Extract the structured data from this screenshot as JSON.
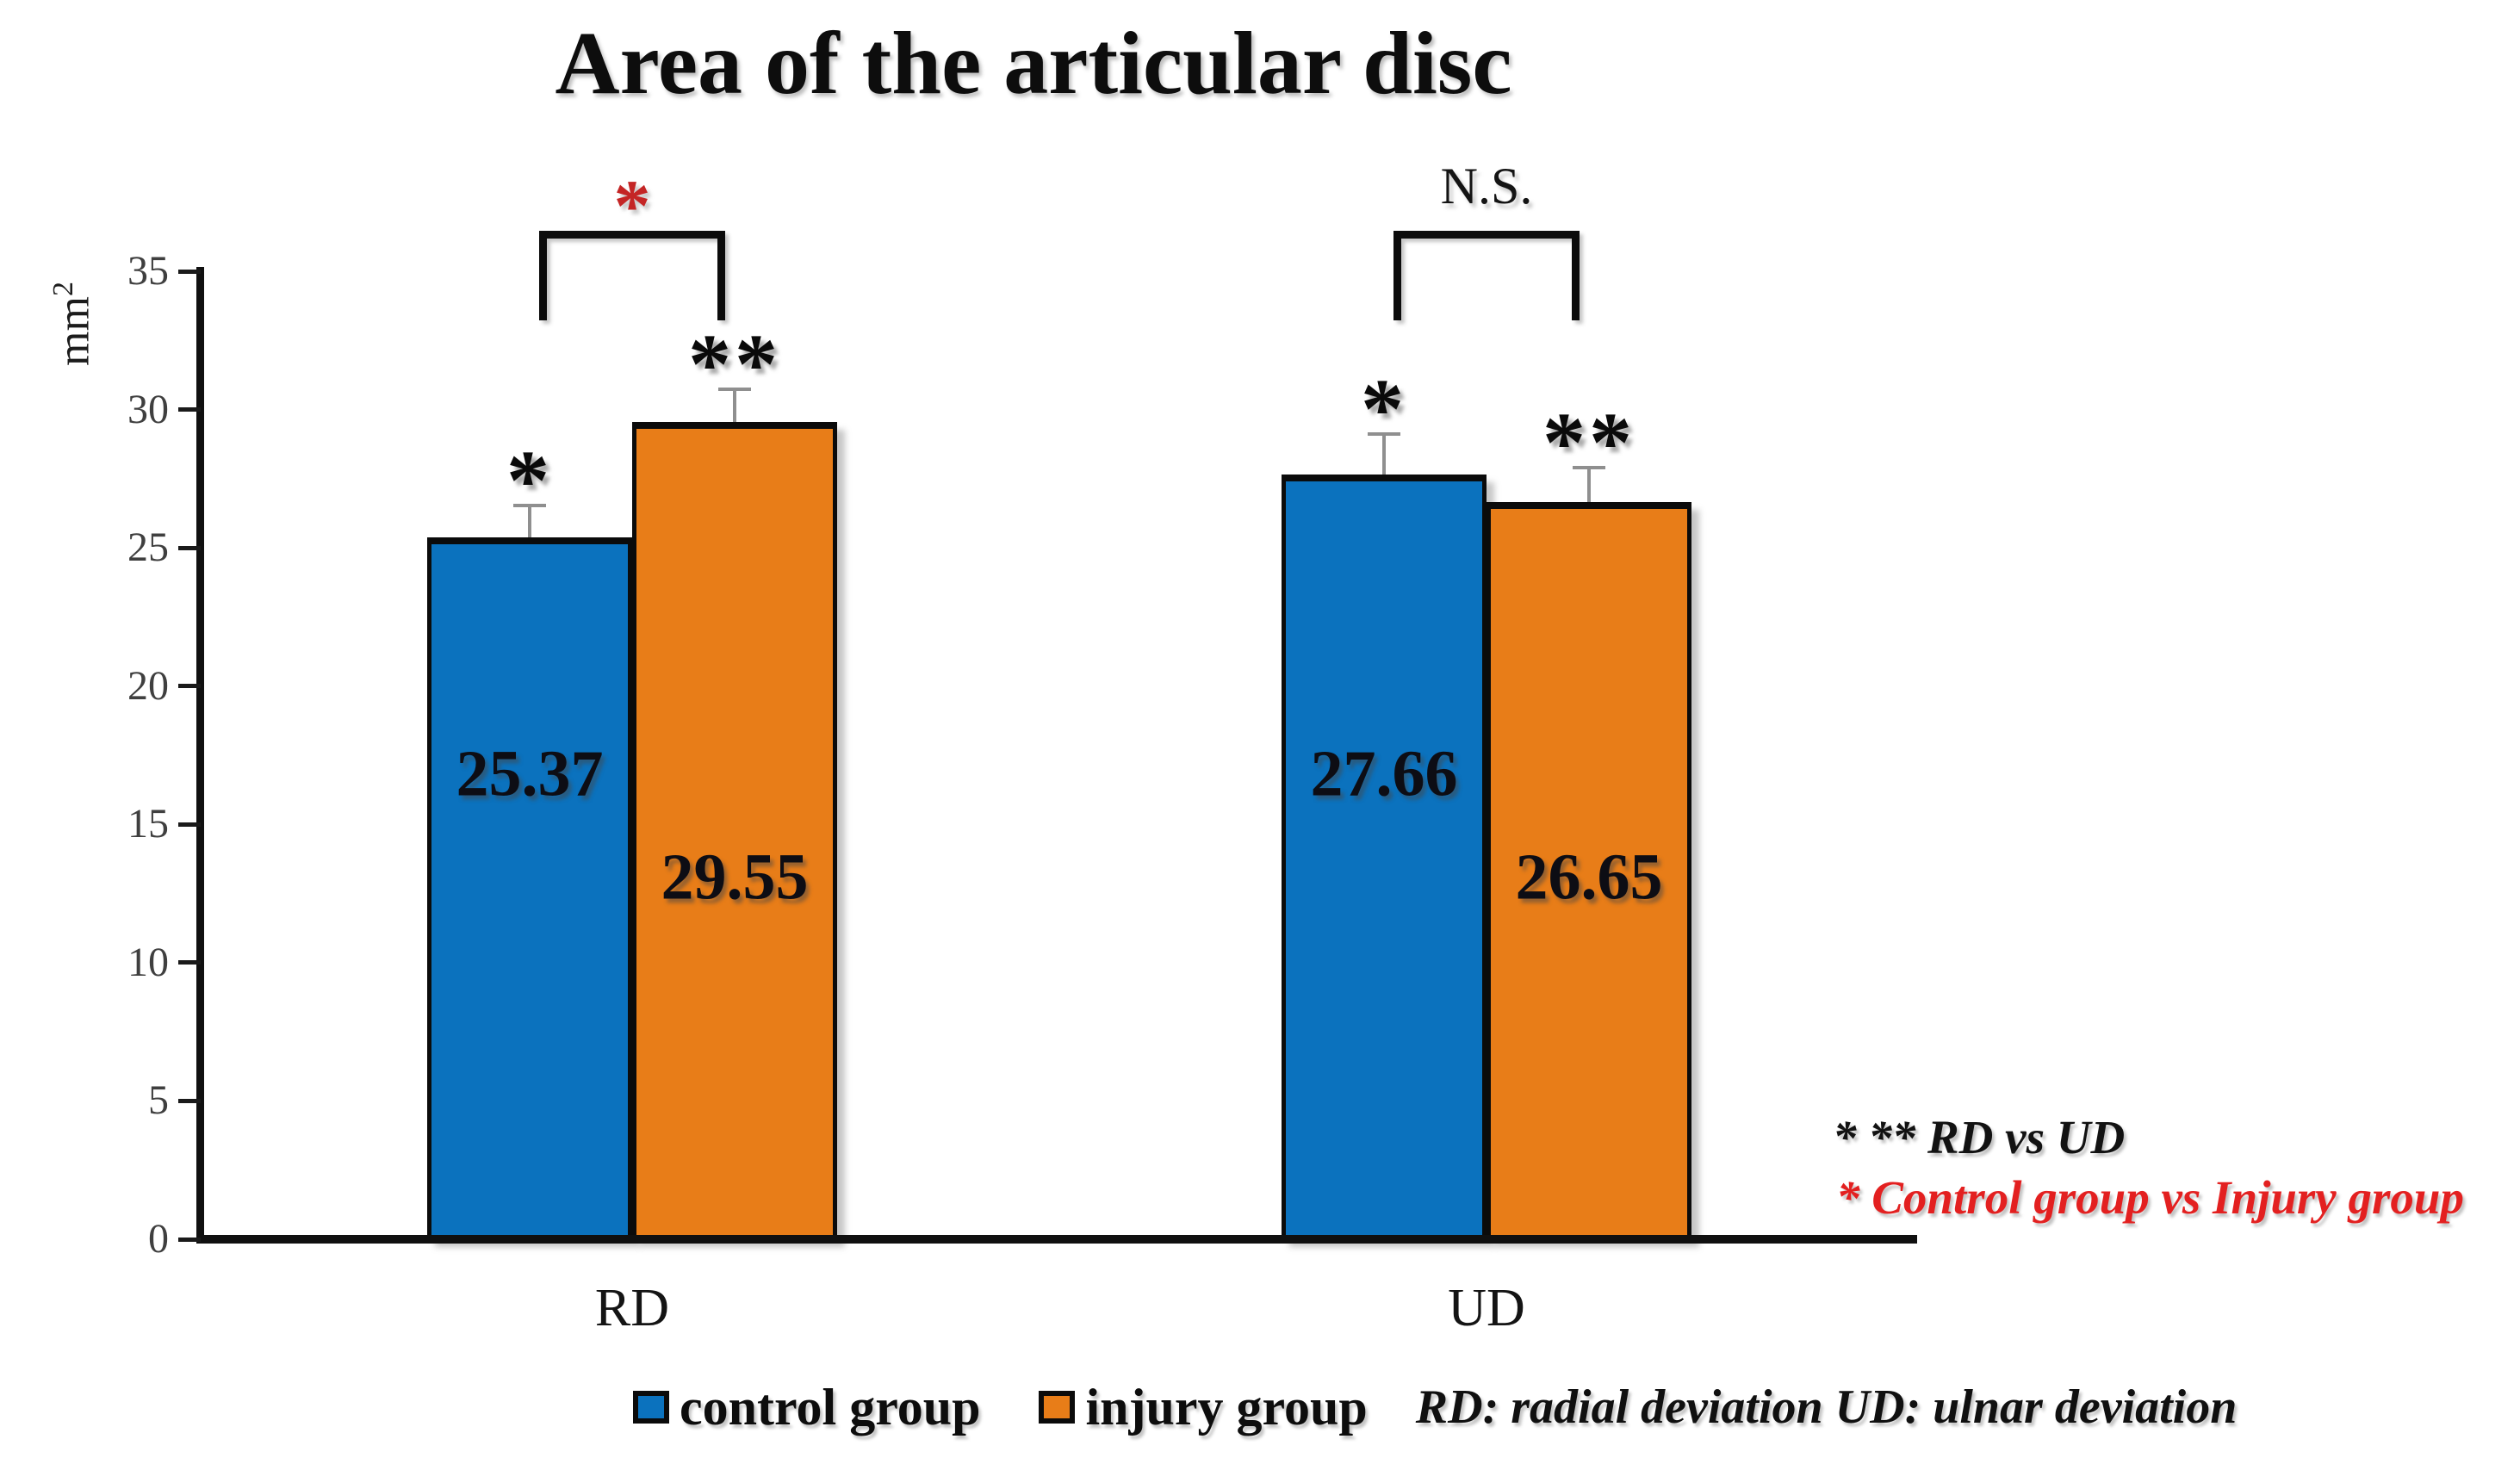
{
  "title": "Area of the articular disc",
  "y_axis_unit": {
    "base": "mm",
    "sup": "2"
  },
  "chart_data": {
    "type": "bar",
    "title": "Area of the articular disc",
    "ylabel": "mm²",
    "ylim": [
      0,
      35
    ],
    "yticks": [
      0,
      5,
      10,
      15,
      20,
      25,
      30,
      35
    ],
    "grid": false,
    "legend_position": "bottom",
    "categories": [
      "RD",
      "UD"
    ],
    "series": [
      {
        "name": "control group",
        "color": "#0B72BE",
        "values": [
          25.37,
          27.66
        ],
        "errors_up": [
          1.15,
          1.45
        ],
        "sig_marks": [
          "*",
          "*"
        ]
      },
      {
        "name": "injury group",
        "color": "#E87D18",
        "values": [
          29.55,
          26.65
        ],
        "errors_up": [
          1.18,
          1.25
        ],
        "sig_marks": [
          "**",
          "**"
        ]
      }
    ],
    "pair_comparisons": [
      {
        "category": "RD",
        "label": "*",
        "label_color": "#C42525",
        "style": "star"
      },
      {
        "category": "UD",
        "label": "N.S.",
        "label_color": "#141414",
        "style": "text"
      }
    ]
  },
  "legend": {
    "items": [
      {
        "label": "control group",
        "color": "#0B72BE"
      },
      {
        "label": "injury group",
        "color": "#E87D18"
      }
    ]
  },
  "footnotes": {
    "axis_note": "RD: radial deviation UD: ulnar deviation",
    "sig_note_black": "* ** RD vs UD",
    "sig_note_red": "* Control group vs Injury group",
    "red_color": "#E32020"
  },
  "colors": {
    "bar_border": "#0b0b0b",
    "axis": "#101010",
    "tick_label": "#3f3f3f",
    "error_bar": "#8f8f8f"
  }
}
